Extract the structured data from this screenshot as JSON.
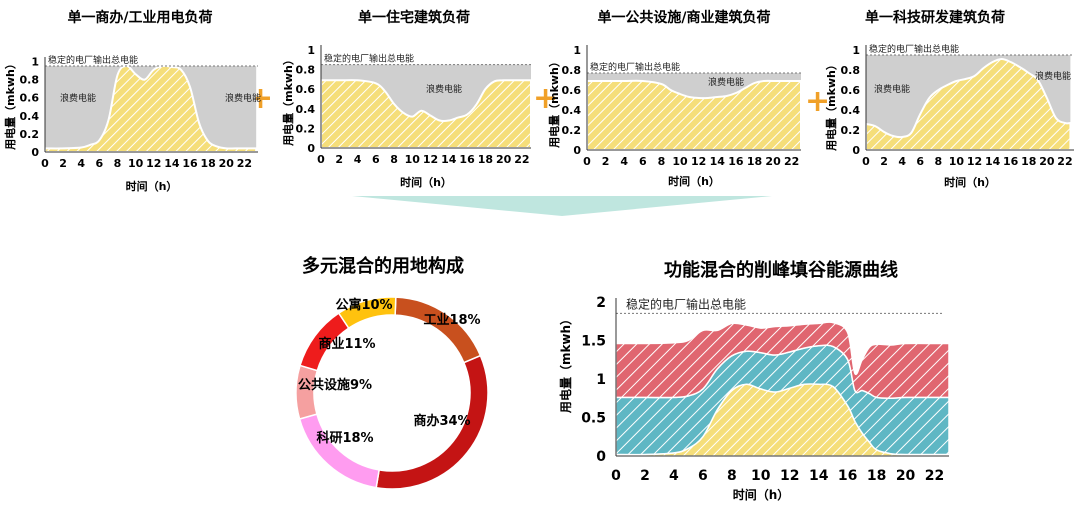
{
  "colors": {
    "yellow": "#f5de7a",
    "yellow_stripe": "#ffffff",
    "gray": "#cfcfcf",
    "red_area": "#e06670",
    "teal_area": "#5fb7c4",
    "plus": "#f0a028",
    "arrow": "#bfe6df",
    "dash": "#777777",
    "donut": [
      "#c8501e",
      "#c41414",
      "#ff9cf0",
      "#f5a0a0",
      "#ee1c1c",
      "#ffc20e"
    ]
  },
  "plus_sign": "+",
  "shared": {
    "ylabel": "用电量（mkwh）",
    "xlabel": "时间（h）",
    "stable_label": "稳定的电厂输出总电能",
    "waste_label": "浪费电能"
  },
  "chart_data": [
    {
      "type": "area",
      "title": "单一商办/工业用电负荷",
      "xlabel": "时间（h）",
      "ylabel": "用电量（mkwh）",
      "xticks": [
        0,
        2,
        4,
        6,
        8,
        10,
        12,
        14,
        16,
        18,
        20,
        22
      ],
      "yticks": [
        0,
        0.2,
        0.4,
        0.6,
        0.8,
        1
      ],
      "xlim": [
        0,
        23.5
      ],
      "ylim": [
        0,
        1.05
      ],
      "stable_output": 0.95,
      "annotations": [
        "稳定的电厂输出总电能",
        "浪费电能",
        "浪费电能"
      ],
      "series": [
        {
          "x": [
            0,
            2,
            4,
            5,
            6,
            7,
            8,
            9,
            10,
            11,
            12,
            13,
            14,
            15,
            16,
            17,
            18,
            19,
            20,
            21,
            22
          ],
          "y": [
            0.04,
            0.04,
            0.05,
            0.08,
            0.13,
            0.35,
            0.85,
            0.95,
            0.86,
            0.8,
            0.91,
            0.95,
            0.94,
            0.91,
            0.72,
            0.32,
            0.12,
            0.06,
            0.04,
            0.04,
            0.04
          ]
        }
      ]
    },
    {
      "type": "area",
      "title": "单一住宅建筑负荷",
      "xlabel": "时间（h）",
      "ylabel": "用电量（mkwh）",
      "xticks": [
        0,
        2,
        4,
        6,
        8,
        10,
        12,
        14,
        16,
        18,
        20,
        22
      ],
      "yticks": [
        0,
        0.2,
        0.4,
        0.6,
        0.8,
        1
      ],
      "xlim": [
        0,
        23
      ],
      "ylim": [
        0,
        1.05
      ],
      "stable_output": 0.85,
      "annotations": [
        "稳定的电厂输出总电能",
        "浪费电能"
      ],
      "series": [
        {
          "x": [
            0,
            2,
            4,
            6,
            7,
            8,
            9,
            10,
            11,
            12,
            13,
            14,
            15,
            16,
            17,
            18,
            19,
            20,
            22,
            23
          ],
          "y": [
            0.69,
            0.69,
            0.69,
            0.66,
            0.58,
            0.45,
            0.36,
            0.32,
            0.38,
            0.33,
            0.28,
            0.28,
            0.31,
            0.34,
            0.44,
            0.6,
            0.68,
            0.69,
            0.69,
            0.69
          ]
        }
      ]
    },
    {
      "type": "area",
      "title": "单一公共设施/商业建筑负荷",
      "xlabel": "时间（h）",
      "ylabel": "用电量（mkwh）",
      "xticks": [
        0,
        2,
        4,
        6,
        8,
        10,
        12,
        14,
        16,
        18,
        20,
        22
      ],
      "yticks": [
        0,
        0.2,
        0.4,
        0.6,
        0.8,
        1
      ],
      "xlim": [
        0,
        23
      ],
      "ylim": [
        0,
        1.05
      ],
      "stable_output": 0.77,
      "annotations": [
        "稳定的电厂输出总电能",
        "浪费电能"
      ],
      "series": [
        {
          "x": [
            0,
            2,
            4,
            6,
            8,
            9,
            10,
            11,
            12,
            13,
            14,
            15,
            16,
            17,
            18,
            19,
            20,
            22,
            23
          ],
          "y": [
            0.69,
            0.69,
            0.69,
            0.69,
            0.66,
            0.6,
            0.56,
            0.53,
            0.52,
            0.52,
            0.53,
            0.54,
            0.57,
            0.62,
            0.67,
            0.69,
            0.69,
            0.69,
            0.69
          ]
        }
      ]
    },
    {
      "type": "area",
      "title": "单一科技研发建筑负荷",
      "xlabel": "时间（h）",
      "ylabel": "用电量（mkwh）",
      "xticks": [
        0,
        2,
        4,
        6,
        8,
        10,
        12,
        14,
        16,
        18,
        20,
        22
      ],
      "yticks": [
        0,
        0.2,
        0.4,
        0.6,
        0.8,
        1
      ],
      "xlim": [
        0,
        23
      ],
      "ylim": [
        0,
        1.05
      ],
      "stable_output": 0.95,
      "annotations": [
        "稳定的电厂输出总电能",
        "浪费电能",
        "浪费电能"
      ],
      "series": [
        {
          "x": [
            0,
            1,
            2,
            3,
            4,
            5,
            6,
            7,
            8,
            9,
            10,
            11,
            12,
            13,
            14,
            15,
            16,
            17,
            18,
            19,
            20,
            21,
            22
          ],
          "y": [
            0.26,
            0.24,
            0.18,
            0.14,
            0.13,
            0.17,
            0.36,
            0.52,
            0.6,
            0.65,
            0.69,
            0.71,
            0.74,
            0.82,
            0.88,
            0.91,
            0.88,
            0.83,
            0.77,
            0.7,
            0.52,
            0.32,
            0.27
          ]
        }
      ]
    },
    {
      "type": "pie",
      "title": "多元混合的用地构成",
      "labels": [
        "工业18%",
        "商办34%",
        "科研18%",
        "公共设施9%",
        "商业11%",
        "公寓10%"
      ],
      "values": [
        18,
        34,
        18,
        9,
        11,
        10
      ]
    },
    {
      "type": "area",
      "title": "功能混合的削峰填谷能源曲线",
      "xlabel": "时间（h）",
      "ylabel": "用电量（mkwh）",
      "xticks": [
        0,
        2,
        4,
        6,
        8,
        10,
        12,
        14,
        16,
        18,
        20,
        22
      ],
      "yticks": [
        0,
        0.5,
        1,
        1.5,
        2
      ],
      "xlim": [
        0,
        23
      ],
      "ylim": [
        0,
        2.05
      ],
      "stable_output": 1.85,
      "annotations": [
        "稳定的电厂输出总电能"
      ],
      "stacking": "stacked",
      "series": [
        {
          "x": [
            0,
            2,
            4,
            5,
            6,
            7,
            8,
            9,
            10,
            11,
            12,
            13,
            14,
            15,
            16,
            16.5,
            17,
            17.5,
            18,
            19,
            20,
            22,
            23
          ],
          "y": [
            0.02,
            0.02,
            0.04,
            0.1,
            0.25,
            0.6,
            0.85,
            0.93,
            0.87,
            0.83,
            0.88,
            0.93,
            0.93,
            0.9,
            0.65,
            0.45,
            0.3,
            0.18,
            0.08,
            0.03,
            0.02,
            0.02,
            0.02
          ]
        },
        {
          "x": [
            0,
            2,
            4,
            5,
            6,
            7,
            8,
            9,
            10,
            11,
            12,
            13,
            14,
            15,
            16,
            16.5,
            17,
            17.5,
            18,
            19,
            20,
            22,
            23
          ],
          "y": [
            0.74,
            0.74,
            0.72,
            0.68,
            0.62,
            0.53,
            0.45,
            0.43,
            0.47,
            0.48,
            0.47,
            0.47,
            0.5,
            0.52,
            0.6,
            0.4,
            0.55,
            0.63,
            0.68,
            0.72,
            0.74,
            0.74,
            0.74
          ]
        },
        {
          "x": [
            0,
            2,
            4,
            5,
            6,
            7,
            8,
            9,
            10,
            11,
            12,
            13,
            14,
            15,
            16,
            16.5,
            17,
            17.5,
            18,
            19,
            20,
            22,
            23
          ],
          "y": [
            0.7,
            0.7,
            0.71,
            0.72,
            0.76,
            0.5,
            0.42,
            0.34,
            0.32,
            0.37,
            0.34,
            0.31,
            0.29,
            0.31,
            0.35,
            0.22,
            0.4,
            0.6,
            0.69,
            0.69,
            0.7,
            0.7,
            0.7
          ]
        }
      ]
    }
  ]
}
